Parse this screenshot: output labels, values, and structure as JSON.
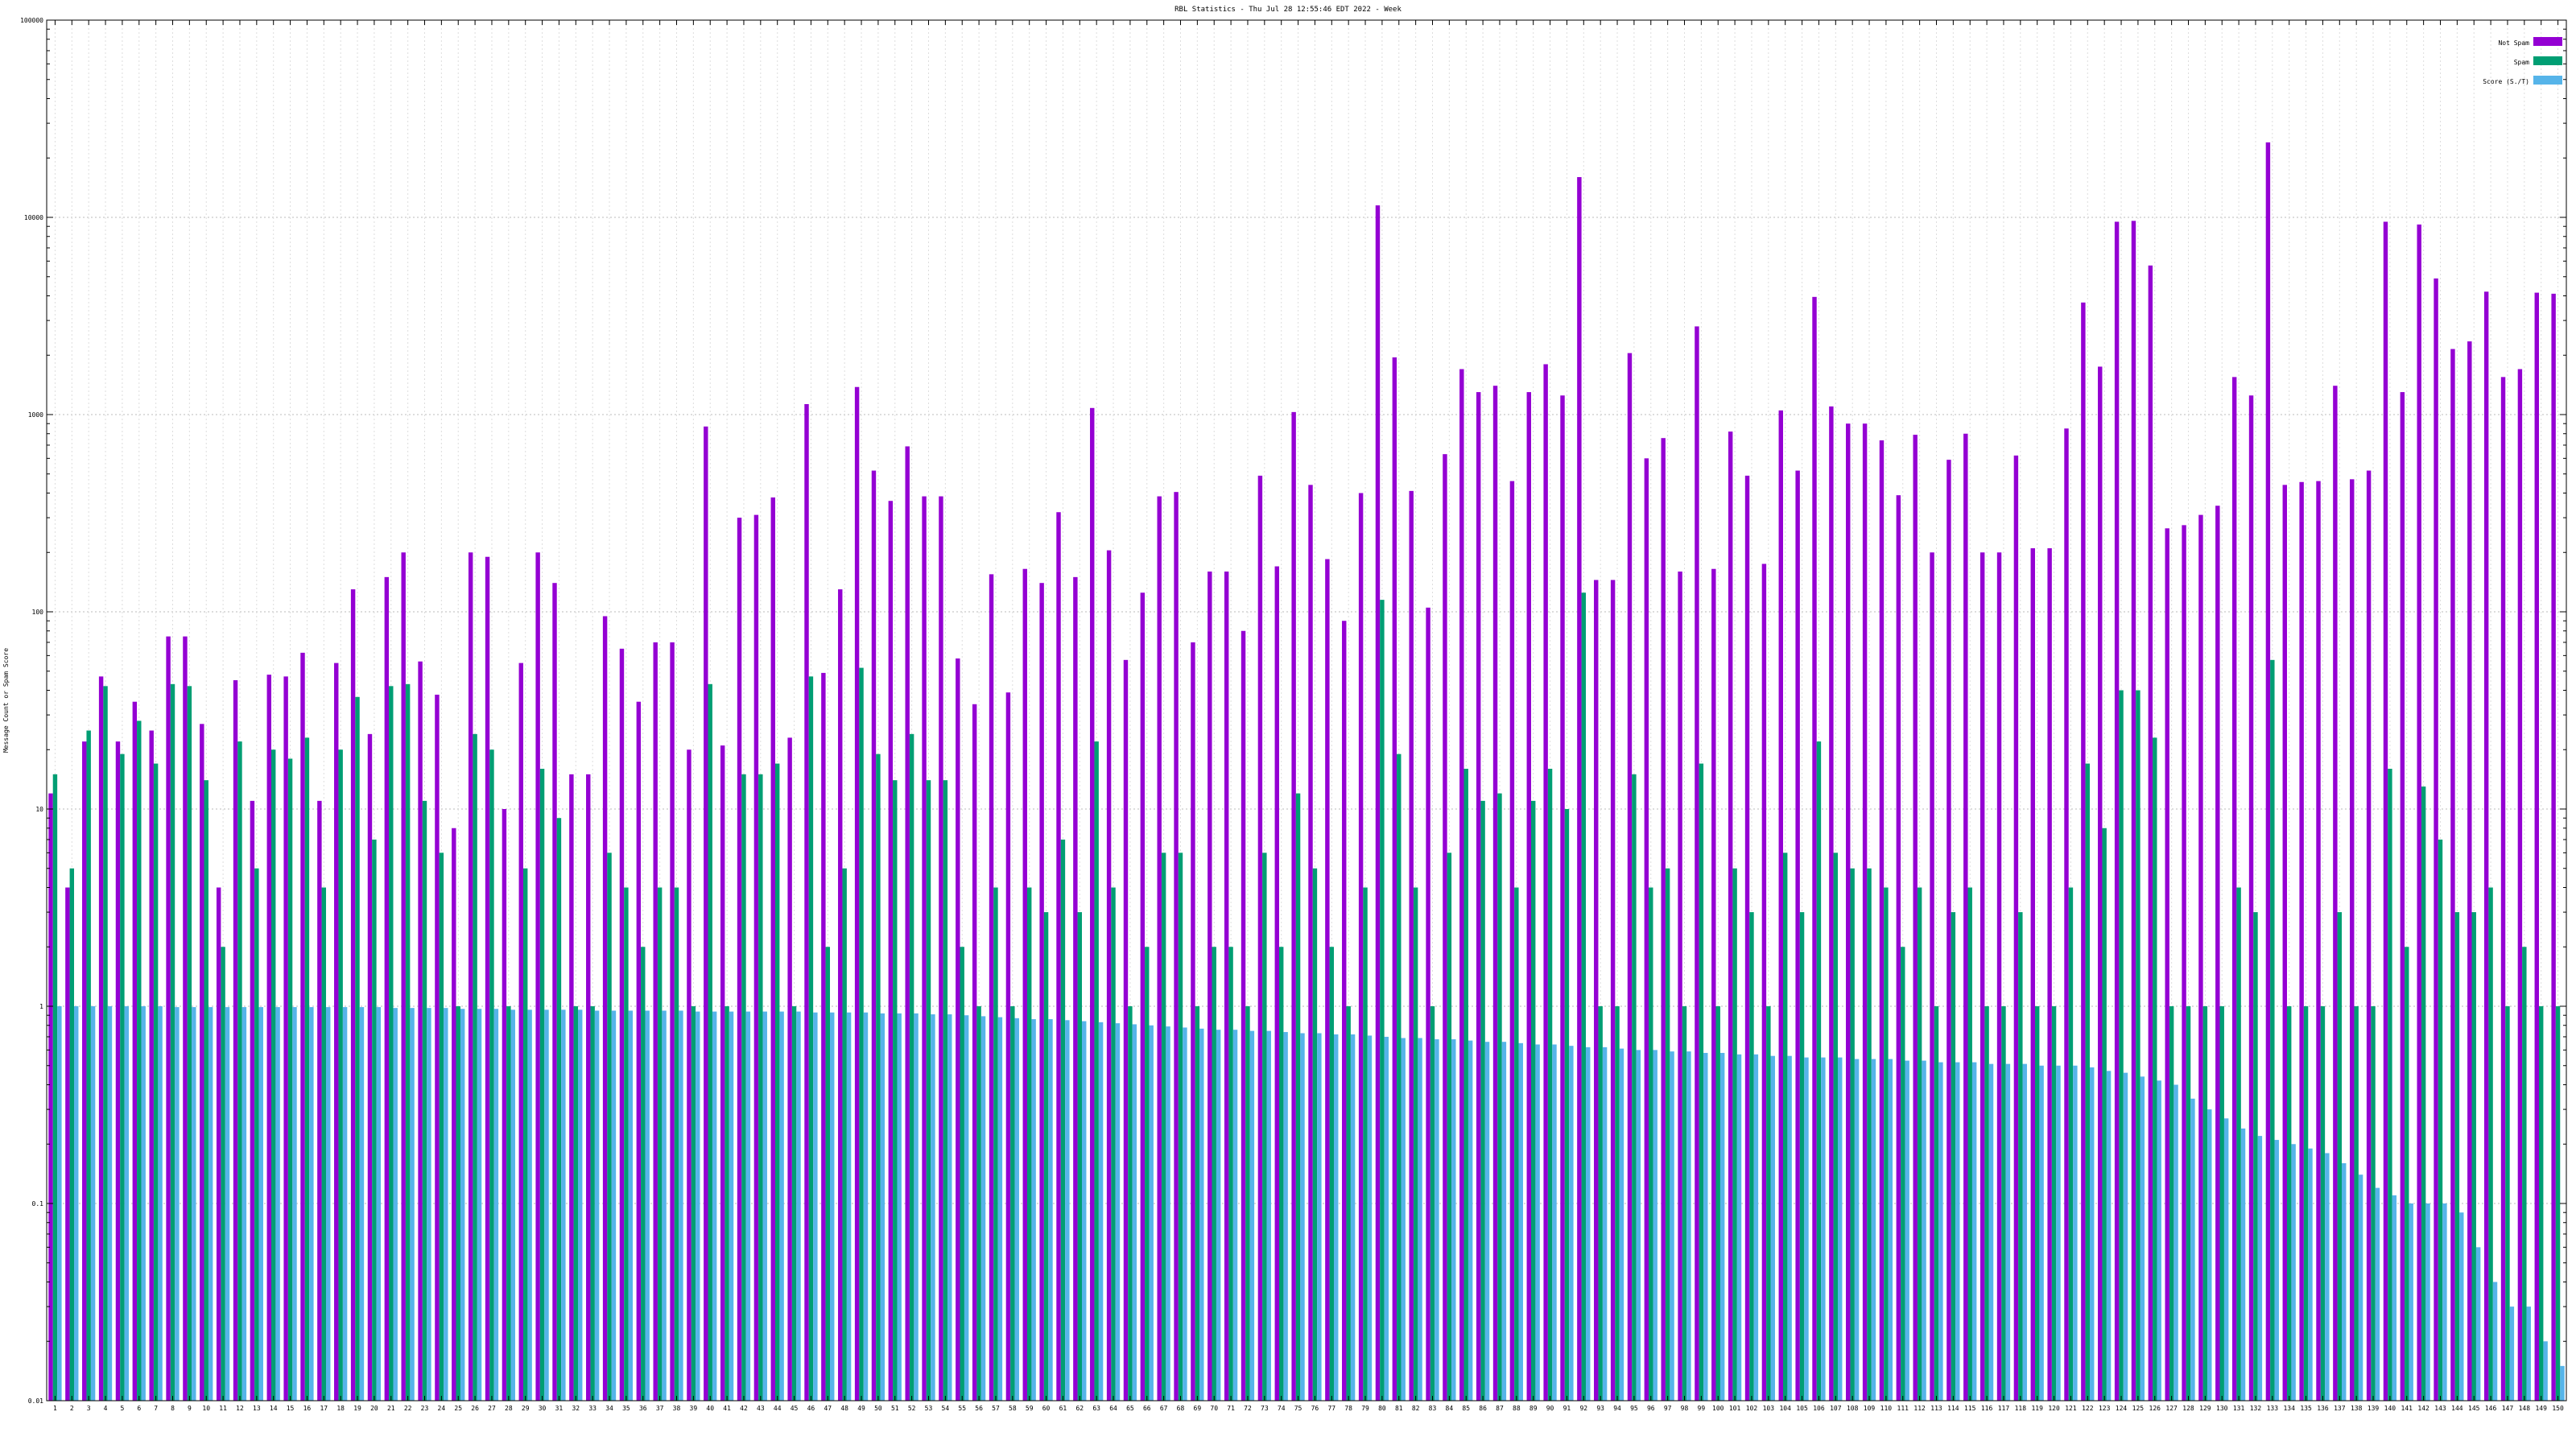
{
  "chart_data": {
    "type": "bar",
    "title": "RBL Statistics - Thu Jul 28 12:55:46 EDT 2022 - Week",
    "ylabel": "Message Count or Spam Score",
    "xlabel": "",
    "yscale": "log",
    "ylim": [
      0.01,
      100000
    ],
    "yticks": [
      {
        "value": 0.01,
        "label": "0.01"
      },
      {
        "value": 0.1,
        "label": "0.1"
      },
      {
        "value": 1,
        "label": "1"
      },
      {
        "value": 10,
        "label": "10"
      },
      {
        "value": 100,
        "label": "100"
      },
      {
        "value": 1000,
        "label": "1000"
      },
      {
        "value": 10000,
        "label": "10000"
      },
      {
        "value": 100000,
        "label": "100000"
      }
    ],
    "grid": true,
    "legend_position": "top-right",
    "categories": [
      "1",
      "2",
      "3",
      "4",
      "5",
      "6",
      "7",
      "8",
      "9",
      "10",
      "11",
      "12",
      "13",
      "14",
      "15",
      "16",
      "17",
      "18",
      "19",
      "20",
      "21",
      "22",
      "23",
      "24",
      "25",
      "26",
      "27",
      "28",
      "29",
      "30",
      "31",
      "32",
      "33",
      "34",
      "35",
      "36",
      "37",
      "38",
      "39",
      "40",
      "41",
      "42",
      "43",
      "44",
      "45",
      "46",
      "47",
      "48",
      "49",
      "50",
      "51",
      "52",
      "53",
      "54",
      "55",
      "56",
      "57",
      "58",
      "59",
      "60",
      "61",
      "62",
      "63",
      "64",
      "65",
      "66",
      "67",
      "68",
      "69",
      "70",
      "71",
      "72",
      "73",
      "74",
      "75",
      "76",
      "77",
      "78",
      "79",
      "80",
      "81",
      "82",
      "83",
      "84",
      "85",
      "86",
      "87",
      "88",
      "89",
      "90",
      "91",
      "92",
      "93",
      "94",
      "95",
      "96",
      "97",
      "98",
      "99",
      "100",
      "101",
      "102",
      "103",
      "104",
      "105",
      "106",
      "107",
      "108",
      "109",
      "110",
      "111",
      "112",
      "113",
      "114",
      "115",
      "116",
      "117",
      "118",
      "119",
      "120",
      "121",
      "122",
      "123",
      "124",
      "125",
      "126",
      "127",
      "128",
      "129",
      "130",
      "131",
      "132",
      "133",
      "134",
      "135",
      "136",
      "137",
      "138",
      "139",
      "140",
      "141",
      "142",
      "143",
      "144",
      "145",
      "146",
      "147",
      "148",
      "149",
      "150"
    ],
    "series": [
      {
        "name": "Not Spam",
        "color": "#9400d3",
        "values": [
          12,
          4,
          22,
          47,
          22,
          35,
          25,
          75,
          75,
          27,
          4,
          45,
          11,
          48,
          47,
          62,
          11,
          55,
          130,
          24,
          150,
          200,
          56,
          38,
          8,
          200,
          190,
          10,
          55,
          200,
          140,
          15,
          15,
          95,
          65,
          35,
          70,
          70,
          20,
          870,
          21,
          300,
          310,
          380,
          23,
          1130,
          49,
          130,
          1380,
          520,
          365,
          690,
          385,
          385,
          58,
          34,
          155,
          39,
          165,
          140,
          320,
          150,
          1080,
          205,
          57,
          125,
          385,
          405,
          70,
          160,
          160,
          80,
          490,
          170,
          1030,
          440,
          185,
          90,
          400,
          11500,
          1950,
          410,
          105,
          630,
          1700,
          1300,
          1400,
          460,
          1300,
          1800,
          1250,
          16000,
          145,
          145,
          2050,
          600,
          760,
          160,
          2800,
          165,
          820,
          490,
          175,
          1050,
          520,
          3950,
          1100,
          900,
          900,
          740,
          390,
          790,
          200,
          590,
          800,
          200,
          200,
          620,
          210,
          210,
          850,
          3700,
          1750,
          9500,
          9600,
          5700,
          265,
          275,
          310,
          345,
          1550,
          1250,
          24000,
          440,
          455,
          460,
          1400,
          470,
          520,
          9500,
          1300,
          9200,
          4900,
          2150,
          2350,
          4200,
          1550,
          1700,
          4150,
          4100
        ]
      },
      {
        "name": "Spam",
        "color": "#009e73",
        "values": [
          15,
          5,
          25,
          42,
          19,
          28,
          17,
          43,
          42,
          14,
          2,
          22,
          5,
          20,
          18,
          23,
          4,
          20,
          37,
          7,
          42,
          43,
          11,
          6,
          1,
          24,
          20,
          1,
          5,
          16,
          9,
          1,
          1,
          6,
          4,
          2,
          4,
          4,
          1,
          43,
          1,
          15,
          15,
          17,
          1,
          47,
          2,
          5,
          52,
          19,
          14,
          24,
          14,
          14,
          2,
          1,
          4,
          1,
          4,
          3,
          7,
          3,
          22,
          4,
          1,
          2,
          6,
          6,
          1,
          2,
          2,
          1,
          6,
          2,
          12,
          5,
          2,
          1,
          4,
          115,
          19,
          4,
          1,
          6,
          16,
          11,
          12,
          4,
          11,
          16,
          10,
          125,
          1,
          1,
          15,
          4,
          5,
          1,
          17,
          1,
          5,
          3,
          1,
          6,
          3,
          22,
          6,
          5,
          5,
          4,
          2,
          4,
          1,
          3,
          4,
          1,
          1,
          3,
          1,
          1,
          4,
          17,
          8,
          40,
          40,
          23,
          1,
          1,
          1,
          1,
          4,
          3,
          57,
          1,
          1,
          1,
          3,
          1,
          1,
          16,
          2,
          13,
          7,
          3,
          3,
          4,
          1,
          2,
          1,
          1
        ]
      },
      {
        "name": "Score (S./T)",
        "color": "#56b4e9",
        "values": [
          1,
          1,
          1,
          1,
          1,
          1,
          1,
          0.99,
          0.99,
          0.99,
          0.99,
          0.99,
          0.99,
          0.99,
          0.99,
          0.99,
          0.99,
          0.99,
          0.99,
          0.99,
          0.98,
          0.98,
          0.98,
          0.98,
          0.97,
          0.97,
          0.97,
          0.96,
          0.96,
          0.96,
          0.96,
          0.96,
          0.95,
          0.95,
          0.95,
          0.95,
          0.95,
          0.95,
          0.94,
          0.94,
          0.94,
          0.94,
          0.94,
          0.94,
          0.94,
          0.93,
          0.93,
          0.93,
          0.93,
          0.92,
          0.92,
          0.92,
          0.91,
          0.91,
          0.9,
          0.89,
          0.88,
          0.87,
          0.86,
          0.86,
          0.85,
          0.84,
          0.83,
          0.82,
          0.81,
          0.8,
          0.79,
          0.78,
          0.77,
          0.76,
          0.76,
          0.75,
          0.75,
          0.74,
          0.73,
          0.73,
          0.72,
          0.72,
          0.71,
          0.7,
          0.69,
          0.69,
          0.68,
          0.68,
          0.67,
          0.66,
          0.66,
          0.65,
          0.64,
          0.64,
          0.63,
          0.62,
          0.62,
          0.61,
          0.6,
          0.6,
          0.59,
          0.59,
          0.58,
          0.58,
          0.57,
          0.57,
          0.56,
          0.56,
          0.55,
          0.55,
          0.55,
          0.54,
          0.54,
          0.54,
          0.53,
          0.53,
          0.52,
          0.52,
          0.52,
          0.51,
          0.51,
          0.51,
          0.5,
          0.5,
          0.5,
          0.49,
          0.47,
          0.46,
          0.44,
          0.42,
          0.4,
          0.34,
          0.3,
          0.27,
          0.24,
          0.22,
          0.21,
          0.2,
          0.19,
          0.18,
          0.16,
          0.14,
          0.12,
          0.11,
          0.1,
          0.1,
          0.1,
          0.09,
          0.06,
          0.04,
          0.03,
          0.03,
          0.02,
          0.015
        ]
      }
    ]
  }
}
